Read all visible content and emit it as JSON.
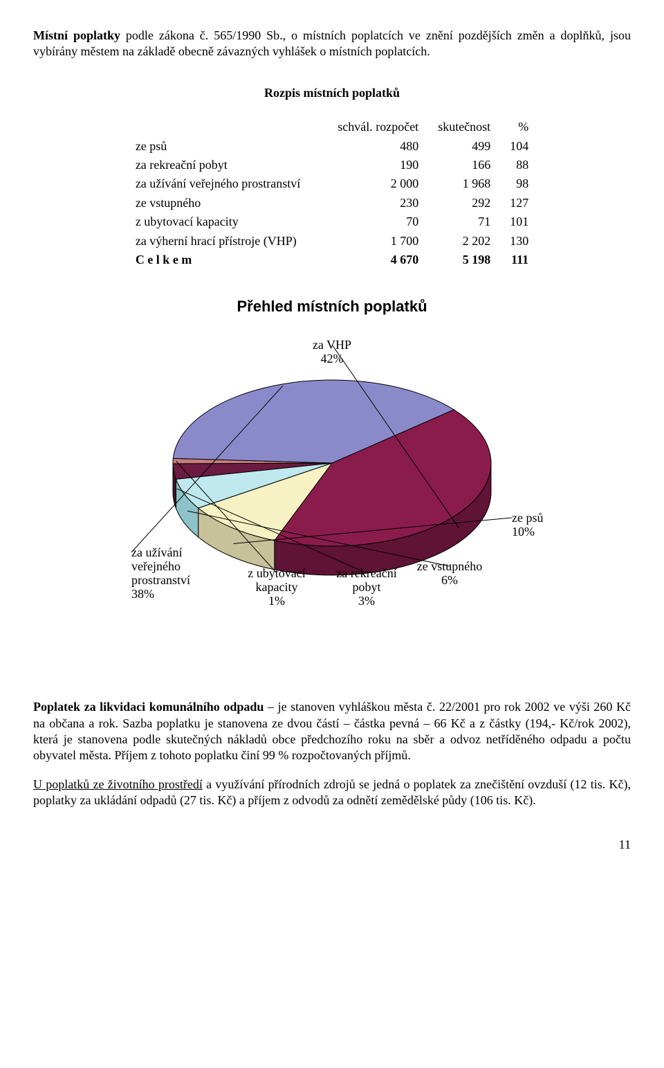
{
  "intro_para": "Místní poplatky podle zákona č. 565/1990 Sb., o místních poplatcích ve znění pozdějších změn a doplňků, jsou vybírány městem na základě obecně závazných vyhlášek o místních poplatcích.",
  "intro_lead": "Místní poplatky",
  "table_title": "Rozpis místních poplatků",
  "table": {
    "headers": {
      "c1": "schvál. rozpočet",
      "c2": "skutečnost",
      "c3": "%"
    },
    "rows": [
      {
        "label": "ze psů",
        "c1": "480",
        "c2": "499",
        "c3": "104"
      },
      {
        "label": "za rekreační pobyt",
        "c1": "190",
        "c2": "166",
        "c3": "88"
      },
      {
        "label": "za užívání veřejného prostranství",
        "c1": "2 000",
        "c2": "1 968",
        "c3": "98"
      },
      {
        "label": "ze vstupného",
        "c1": "230",
        "c2": "292",
        "c3": "127"
      },
      {
        "label": "z ubytovací kapacity",
        "c1": "70",
        "c2": "71",
        "c3": "101"
      },
      {
        "label": "za výherní hrací přístroje (VHP)",
        "c1": "1 700",
        "c2": "2 202",
        "c3": "130"
      }
    ],
    "total": {
      "label": "C e l  k e m",
      "c1": "4 670",
      "c2": "5 198",
      "c3": "111"
    }
  },
  "chart": {
    "type": "pie-3d",
    "title": "Přehled místních poplatků",
    "background_color": "#ffffff",
    "label_fontsize": 18,
    "title_fontsize": 22,
    "slices": [
      {
        "name": "za VHP",
        "percent": 42,
        "label": "za VHP\n42%",
        "face_color": "#8a1c4b",
        "side_color": "#5f1335"
      },
      {
        "name": "ze psů",
        "percent": 10,
        "label": "ze psů\n10%",
        "face_color": "#f7f2c4",
        "side_color": "#c7c299"
      },
      {
        "name": "ze vstupného",
        "percent": 6,
        "label": "ze vstupného\n6%",
        "face_color": "#bfe9ee",
        "side_color": "#8cc2c8"
      },
      {
        "name": "za rekreační pobyt",
        "percent": 3,
        "label": "za rekreační\npobyt\n3%",
        "face_color": "#6a1b3f",
        "side_color": "#47122b"
      },
      {
        "name": "z ubytovací kapacity",
        "percent": 1,
        "label": "z ubytovací\nkapacity\n1%",
        "face_color": "#c97b7b",
        "side_color": "#9a5a5a"
      },
      {
        "name": "za užívání veřejného prostranství",
        "percent": 38,
        "label": "za užívání\nveřejného\nprostranství\n38%",
        "face_color": "#8a8acb",
        "side_color": "#5a5a9a"
      }
    ],
    "edge_color": "#000000",
    "leader_color": "#000000"
  },
  "para2_lead": "Poplatek za likvidaci komunálního odpadu",
  "para2_rest": " – je stanoven vyhláškou města č. 22/2001 pro rok 2002 ve výši 260 Kč na občana a rok. Sazba poplatku je stanovena ze dvou částí – částka pevná – 66 Kč a z částky (194,- Kč/rok 2002), která je stanovena podle skutečných nákladů obce předchozího roku na sběr a odvoz netříděného odpadu a počtu  obyvatel města. Příjem z tohoto poplatku činí 99 % rozpočtovaných příjmů.",
  "para3_lead": "U poplatků ze životního prostředí",
  "para3_rest": " a využívání přírodních zdrojů se jedná o poplatek za znečištění ovzduší (12 tis. Kč), poplatky za ukládání odpadů (27 tis. Kč) a příjem z odvodů za odnětí zemědělské půdy (106 tis. Kč).",
  "page_number": "11"
}
